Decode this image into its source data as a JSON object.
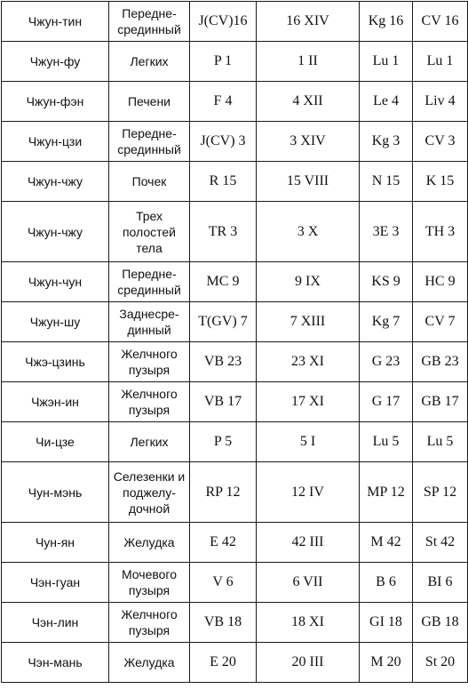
{
  "table": {
    "rows": [
      {
        "name": "Чжун-тин",
        "organ": "Передне-срединный",
        "c3": "J(CV)16",
        "c4": "16 XIV",
        "c5": "Kg 16",
        "c6": "CV 16"
      },
      {
        "name": "Чжун-фу",
        "organ": "Легких",
        "c3": "P 1",
        "c4": "1 II",
        "c5": "Lu 1",
        "c6": "Lu 1"
      },
      {
        "name": "Чжун-фэн",
        "organ": "Печени",
        "c3": "F 4",
        "c4": "4 XII",
        "c5": "Le 4",
        "c6": "Liv 4"
      },
      {
        "name": "Чжун-цзи",
        "organ": "Передне-срединный",
        "c3": "J(CV) 3",
        "c4": "3 XIV",
        "c5": "Kg 3",
        "c6": "CV 3"
      },
      {
        "name": "Чжун-чжу",
        "organ": "Почек",
        "c3": "R 15",
        "c4": "15 VIII",
        "c5": "N 15",
        "c6": "K 15"
      },
      {
        "name": "Чжун-чжу",
        "organ": "Трех полостей тела",
        "c3": "TR 3",
        "c4": "3 X",
        "c5": "3E 3",
        "c6": "TH 3"
      },
      {
        "name": "Чжун-чун",
        "organ": "Передне-срединный",
        "c3": "MC 9",
        "c4": "9 IX",
        "c5": "KS 9",
        "c6": "HC 9"
      },
      {
        "name": "Чжун-шу",
        "organ": "Заднесре-динный",
        "c3": "T(GV) 7",
        "c4": "7 XIII",
        "c5": "Kg 7",
        "c6": "CV 7"
      },
      {
        "name": "Чжэ-цзинь",
        "organ": "Желчного пузыря",
        "c3": "VB 23",
        "c4": "23 XI",
        "c5": "G 23",
        "c6": "GB 23"
      },
      {
        "name": "Чжэн-ин",
        "organ": "Желчного пузыря",
        "c3": "VB 17",
        "c4": "17 XI",
        "c5": "G 17",
        "c6": "GB 17"
      },
      {
        "name": "Чи-цзе",
        "organ": "Легких",
        "c3": "P 5",
        "c4": "5 I",
        "c5": "Lu 5",
        "c6": "Lu 5"
      },
      {
        "name": "Чун-мэнь",
        "organ": "Селезенки и поджелу-дочной",
        "c3": "RP 12",
        "c4": "12 IV",
        "c5": "MP 12",
        "c6": "SP 12"
      },
      {
        "name": "Чун-ян",
        "organ": "Желудка",
        "c3": "E 42",
        "c4": "42 III",
        "c5": "M 42",
        "c6": "St 42"
      },
      {
        "name": "Чэн-гуан",
        "organ": "Мочевого пузыря",
        "c3": "V 6",
        "c4": "6 VII",
        "c5": "B 6",
        "c6": "BI 6"
      },
      {
        "name": "Чэн-лин",
        "organ": "Желчного пузыря",
        "c3": "VB 18",
        "c4": "18 XI",
        "c5": "GI 18",
        "c6": "GB 18"
      },
      {
        "name": "Чэн-мань",
        "organ": "Желудка",
        "c3": "E 20",
        "c4": "20 III",
        "c5": "M 20",
        "c6": "St 20"
      }
    ]
  }
}
